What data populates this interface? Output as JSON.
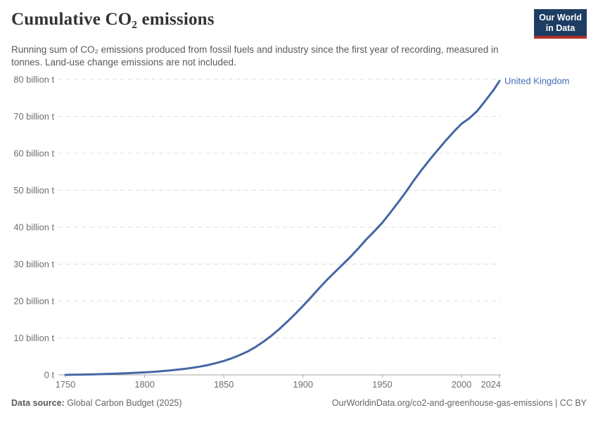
{
  "header": {
    "title": "Cumulative CO₂ emissions",
    "subtitle": "Running sum of CO₂ emissions produced from fossil fuels and industry since the first year of recording, measured in tonnes. Land-use change emissions are not included."
  },
  "logo": {
    "line1": "Our World",
    "line2": "in Data",
    "bg_color": "#1d3d63",
    "accent_color": "#b0332b",
    "text_color": "#ffffff"
  },
  "footer": {
    "source_label": "Data source:",
    "source_value": " Global Carbon Budget (2025)",
    "link": "OurWorldinData.org/co2-and-greenhouse-gas-emissions | CC BY"
  },
  "chart_data": {
    "type": "line",
    "title": "Cumulative CO₂ emissions",
    "xlabel": "",
    "ylabel": "",
    "unit": "billion tonnes",
    "grid": true,
    "legend_position": "end-of-line",
    "x_range": [
      1750,
      2024
    ],
    "y_range": [
      0,
      80
    ],
    "x_ticks": [
      1750,
      1800,
      1850,
      1900,
      1950,
      2000,
      2024
    ],
    "y_ticks": [
      {
        "value": 0,
        "label": "0 t"
      },
      {
        "value": 10,
        "label": "10 billion t"
      },
      {
        "value": 20,
        "label": "20 billion t"
      },
      {
        "value": 30,
        "label": "30 billion t"
      },
      {
        "value": 40,
        "label": "40 billion t"
      },
      {
        "value": 50,
        "label": "50 billion t"
      },
      {
        "value": 60,
        "label": "60 billion t"
      },
      {
        "value": 70,
        "label": "70 billion t"
      },
      {
        "value": 80,
        "label": "80 billion t"
      }
    ],
    "colors": {
      "grid": "#dcdcdc",
      "axis": "#a3a3a3",
      "tick_text": "#6e6e6e"
    },
    "series": [
      {
        "name": "United Kingdom",
        "color": "#4666a5",
        "label_color": "#3d6bb3",
        "points": [
          [
            1750,
            0.0
          ],
          [
            1755,
            0.04
          ],
          [
            1760,
            0.08
          ],
          [
            1765,
            0.12
          ],
          [
            1770,
            0.17
          ],
          [
            1775,
            0.23
          ],
          [
            1780,
            0.3
          ],
          [
            1785,
            0.38
          ],
          [
            1790,
            0.47
          ],
          [
            1795,
            0.57
          ],
          [
            1800,
            0.68
          ],
          [
            1805,
            0.82
          ],
          [
            1810,
            0.98
          ],
          [
            1815,
            1.16
          ],
          [
            1820,
            1.37
          ],
          [
            1825,
            1.61
          ],
          [
            1830,
            1.9
          ],
          [
            1835,
            2.25
          ],
          [
            1840,
            2.67
          ],
          [
            1845,
            3.18
          ],
          [
            1850,
            3.78
          ],
          [
            1855,
            4.5
          ],
          [
            1860,
            5.35
          ],
          [
            1865,
            6.35
          ],
          [
            1870,
            7.55
          ],
          [
            1875,
            9.0
          ],
          [
            1880,
            10.6
          ],
          [
            1885,
            12.4
          ],
          [
            1890,
            14.4
          ],
          [
            1895,
            16.5
          ],
          [
            1900,
            18.7
          ],
          [
            1905,
            21.0
          ],
          [
            1910,
            23.4
          ],
          [
            1915,
            25.7
          ],
          [
            1920,
            27.8
          ],
          [
            1925,
            29.9
          ],
          [
            1930,
            32.0
          ],
          [
            1935,
            34.3
          ],
          [
            1940,
            36.7
          ],
          [
            1945,
            38.9
          ],
          [
            1950,
            41.2
          ],
          [
            1955,
            43.9
          ],
          [
            1960,
            46.7
          ],
          [
            1965,
            49.6
          ],
          [
            1970,
            52.7
          ],
          [
            1975,
            55.6
          ],
          [
            1980,
            58.3
          ],
          [
            1985,
            60.9
          ],
          [
            1990,
            63.4
          ],
          [
            1995,
            65.8
          ],
          [
            2000,
            68.0
          ],
          [
            2005,
            69.5
          ],
          [
            2010,
            71.5
          ],
          [
            2015,
            74.2
          ],
          [
            2018,
            75.9
          ],
          [
            2020,
            77.0
          ],
          [
            2022,
            78.3
          ],
          [
            2024,
            79.6
          ]
        ]
      }
    ]
  }
}
